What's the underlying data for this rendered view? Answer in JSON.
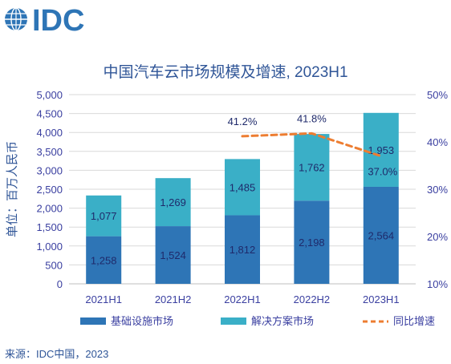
{
  "logo": {
    "text": "IDC",
    "color": "#2E75B6"
  },
  "source_label": "来源：IDC中国，2023",
  "chart_data": {
    "type": "bar",
    "stacked": true,
    "title": "中国汽车云市场规模及增速, 2023H1",
    "ylabel": "单位：百万人民币",
    "categories": [
      "2021H1",
      "2021H2",
      "2022H1",
      "2022H2",
      "2023H1"
    ],
    "ylim": [
      0,
      5000
    ],
    "yticks": [
      "0",
      "500",
      "1,000",
      "1,500",
      "2,000",
      "2,500",
      "3,000",
      "3,500",
      "4,000",
      "4,500",
      "5,000"
    ],
    "y2lim": [
      10,
      50
    ],
    "y2ticks": [
      "10%",
      "20%",
      "30%",
      "40%",
      "50%"
    ],
    "grid": true,
    "legend_position": "bottom",
    "series": [
      {
        "name": "基础设施市场",
        "color": "#2E75B6",
        "values": [
          1258,
          1524,
          1812,
          2198,
          2564
        ],
        "labels": [
          "1,258",
          "1,524",
          "1,812",
          "2,198",
          "2,564"
        ]
      },
      {
        "name": "解决方案市场",
        "color": "#3AAFC7",
        "values": [
          1077,
          1269,
          1485,
          1762,
          1953
        ],
        "labels": [
          "1,077",
          "1,269",
          "1,485",
          "1,762",
          "1,953"
        ]
      }
    ],
    "line_series": {
      "name": "同比增速",
      "color": "#ED7D31",
      "axis": "right",
      "x": [
        "2022H1",
        "2022H2",
        "2023H1"
      ],
      "values": [
        41.2,
        41.8,
        37.0
      ],
      "labels": [
        "41.2%",
        "41.8%",
        "37.0%"
      ]
    }
  }
}
